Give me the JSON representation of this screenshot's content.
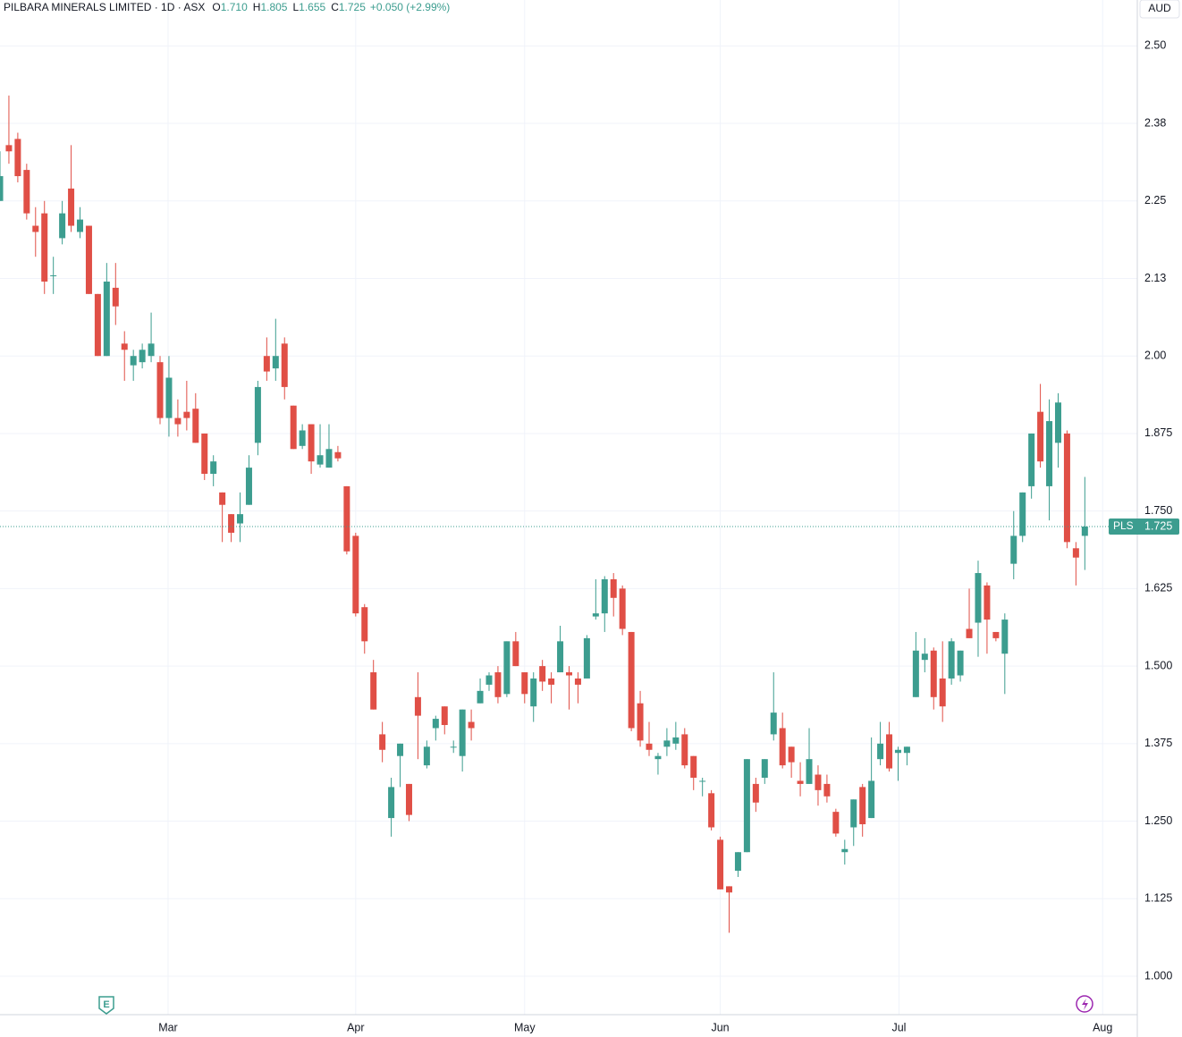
{
  "chart_data": {
    "type": "candlestick",
    "title": "PILBARA MINERALS LIMITED · 1D · ASX",
    "ohlc_header": [
      {
        "key": "O",
        "text": "1.710"
      },
      {
        "key": "H",
        "text": "1.805"
      },
      {
        "key": "L",
        "text": "1.655"
      },
      {
        "key": "C",
        "text": "1.725"
      }
    ],
    "change": "+0.050 (+2.99%)",
    "currency": "AUD",
    "last_price": {
      "name": "PLS",
      "value": 1.725,
      "label": "1.725"
    },
    "up_color": "#3c9d8f",
    "down_color": "#e04f46",
    "grid": true,
    "open": [
      2.25,
      2.34,
      2.35,
      2.3,
      2.21,
      2.23,
      2.13,
      2.19,
      2.27,
      2.2,
      2.21,
      2.1,
      2.0,
      2.11,
      2.02,
      1.985,
      1.99,
      2.0,
      1.99,
      1.9,
      1.9,
      1.91,
      1.915,
      1.875,
      1.81,
      1.78,
      1.745,
      1.73,
      1.76,
      1.86,
      2.0,
      1.98,
      2.02,
      1.92,
      1.855,
      1.89,
      1.825,
      1.82,
      1.845,
      1.79,
      1.71,
      1.595,
      1.49,
      1.39,
      1.255,
      1.355,
      1.31,
      1.45,
      1.34,
      1.4,
      1.435,
      1.37,
      1.355,
      1.41,
      1.44,
      1.47,
      1.49,
      1.455,
      1.54,
      1.49,
      1.435,
      1.5,
      1.48,
      1.49,
      1.49,
      1.48,
      1.48,
      1.58,
      1.585,
      1.64,
      1.625,
      1.555,
      1.44,
      1.375,
      1.35,
      1.37,
      1.375,
      1.39,
      1.355,
      1.315,
      1.295,
      1.22,
      1.145,
      1.17,
      1.2,
      1.31,
      1.32,
      1.39,
      1.4,
      1.37,
      1.315,
      1.31,
      1.325,
      1.31,
      1.265,
      1.2,
      1.24,
      1.305,
      1.255,
      1.35,
      1.39,
      1.36,
      1.36,
      1.45,
      1.51,
      1.525,
      1.48,
      1.48,
      1.485,
      1.56,
      1.57,
      1.63,
      1.555,
      1.52,
      1.665,
      1.71,
      1.79,
      1.91,
      1.79,
      1.86,
      1.875,
      1.69,
      1.71
    ],
    "high": [
      2.33,
      2.42,
      2.36,
      2.31,
      2.24,
      2.25,
      2.16,
      2.25,
      2.34,
      2.24,
      2.21,
      2.1,
      2.15,
      2.15,
      2.04,
      2.01,
      2.02,
      2.07,
      2.0,
      2.0,
      1.93,
      1.96,
      1.94,
      1.875,
      1.84,
      1.78,
      1.745,
      1.78,
      1.84,
      1.96,
      2.03,
      2.06,
      2.03,
      1.92,
      1.89,
      1.89,
      1.89,
      1.89,
      1.855,
      1.79,
      1.715,
      1.6,
      1.51,
      1.41,
      1.32,
      1.375,
      1.31,
      1.49,
      1.38,
      1.42,
      1.435,
      1.38,
      1.43,
      1.43,
      1.48,
      1.49,
      1.5,
      1.54,
      1.555,
      1.49,
      1.49,
      1.51,
      1.49,
      1.565,
      1.5,
      1.49,
      1.55,
      1.64,
      1.645,
      1.65,
      1.63,
      1.555,
      1.46,
      1.41,
      1.36,
      1.4,
      1.41,
      1.4,
      1.355,
      1.32,
      1.3,
      1.225,
      1.145,
      1.2,
      1.35,
      1.32,
      1.35,
      1.49,
      1.425,
      1.37,
      1.345,
      1.4,
      1.34,
      1.325,
      1.27,
      1.22,
      1.285,
      1.31,
      1.385,
      1.41,
      1.41,
      1.37,
      1.37,
      1.555,
      1.545,
      1.53,
      1.54,
      1.545,
      1.525,
      1.625,
      1.67,
      1.635,
      1.555,
      1.585,
      1.75,
      1.78,
      1.875,
      1.955,
      1.93,
      1.94,
      1.88,
      1.7,
      1.805
    ],
    "low": [
      2.25,
      2.31,
      2.28,
      2.22,
      2.16,
      2.1,
      2.1,
      2.18,
      2.2,
      2.19,
      2.1,
      2.0,
      2.0,
      2.05,
      1.96,
      1.96,
      1.98,
      1.99,
      1.89,
      1.87,
      1.87,
      1.88,
      1.86,
      1.8,
      1.79,
      1.7,
      1.7,
      1.7,
      1.76,
      1.84,
      1.96,
      1.96,
      1.93,
      1.85,
      1.85,
      1.81,
      1.82,
      1.82,
      1.83,
      1.68,
      1.58,
      1.52,
      1.43,
      1.345,
      1.225,
      1.305,
      1.25,
      1.35,
      1.335,
      1.38,
      1.39,
      1.36,
      1.33,
      1.38,
      1.44,
      1.46,
      1.44,
      1.45,
      1.5,
      1.44,
      1.41,
      1.46,
      1.44,
      1.49,
      1.43,
      1.44,
      1.48,
      1.575,
      1.555,
      1.58,
      1.55,
      1.395,
      1.37,
      1.355,
      1.325,
      1.355,
      1.365,
      1.335,
      1.3,
      1.29,
      1.235,
      1.14,
      1.07,
      1.16,
      1.2,
      1.265,
      1.31,
      1.38,
      1.335,
      1.32,
      1.29,
      1.31,
      1.275,
      1.28,
      1.225,
      1.18,
      1.21,
      1.225,
      1.255,
      1.34,
      1.33,
      1.315,
      1.34,
      1.45,
      1.49,
      1.43,
      1.41,
      1.47,
      1.475,
      1.545,
      1.515,
      1.52,
      1.54,
      1.455,
      1.64,
      1.7,
      1.77,
      1.82,
      1.735,
      1.82,
      1.69,
      1.63,
      1.655
    ],
    "close": [
      2.29,
      2.33,
      2.29,
      2.23,
      2.2,
      2.12,
      2.13,
      2.23,
      2.21,
      2.22,
      2.1,
      2.0,
      2.12,
      2.08,
      2.01,
      2.0,
      2.01,
      2.02,
      1.9,
      1.965,
      1.89,
      1.9,
      1.86,
      1.81,
      1.83,
      1.76,
      1.715,
      1.745,
      1.82,
      1.95,
      1.975,
      2.0,
      1.95,
      1.85,
      1.88,
      1.83,
      1.84,
      1.85,
      1.835,
      1.685,
      1.585,
      1.54,
      1.43,
      1.365,
      1.305,
      1.375,
      1.26,
      1.42,
      1.37,
      1.415,
      1.405,
      1.37,
      1.43,
      1.4,
      1.46,
      1.485,
      1.45,
      1.54,
      1.5,
      1.455,
      1.48,
      1.475,
      1.47,
      1.54,
      1.485,
      1.47,
      1.545,
      1.585,
      1.64,
      1.61,
      1.56,
      1.4,
      1.38,
      1.365,
      1.355,
      1.38,
      1.385,
      1.34,
      1.32,
      1.315,
      1.24,
      1.14,
      1.135,
      1.2,
      1.35,
      1.28,
      1.35,
      1.425,
      1.34,
      1.345,
      1.31,
      1.35,
      1.3,
      1.29,
      1.23,
      1.205,
      1.285,
      1.245,
      1.315,
      1.375,
      1.335,
      1.365,
      1.37,
      1.525,
      1.52,
      1.45,
      1.435,
      1.54,
      1.525,
      1.545,
      1.65,
      1.575,
      1.545,
      1.575,
      1.71,
      1.78,
      1.875,
      1.83,
      1.895,
      1.925,
      1.7,
      1.675,
      1.725
    ],
    "xlim": [
      0,
      127.9
    ],
    "xticks": [
      {
        "value": 18.9,
        "label": "Mar"
      },
      {
        "value": 40.0,
        "label": "Apr"
      },
      {
        "value": 59.0,
        "label": "May"
      },
      {
        "value": 81.0,
        "label": "Jun"
      },
      {
        "value": 101.1,
        "label": "Jul"
      },
      {
        "value": 124.0,
        "label": "Aug"
      }
    ],
    "ylim": [
      0.938,
      2.574
    ],
    "yticks": [
      {
        "value": 2.5,
        "label": "2.50"
      },
      {
        "value": 2.375,
        "label": "2.38"
      },
      2.25,
      {
        "value": 2.125,
        "label": "2.13"
      },
      {
        "value": 2,
        "label": "2.00"
      },
      1.875,
      {
        "value": 1.75,
        "label": "1.750"
      },
      1.625,
      {
        "value": 1.5,
        "label": "1.500"
      },
      1.375,
      {
        "value": 1.25,
        "label": "1.250"
      },
      1.125,
      {
        "value": 1,
        "label": "1.000"
      }
    ]
  }
}
